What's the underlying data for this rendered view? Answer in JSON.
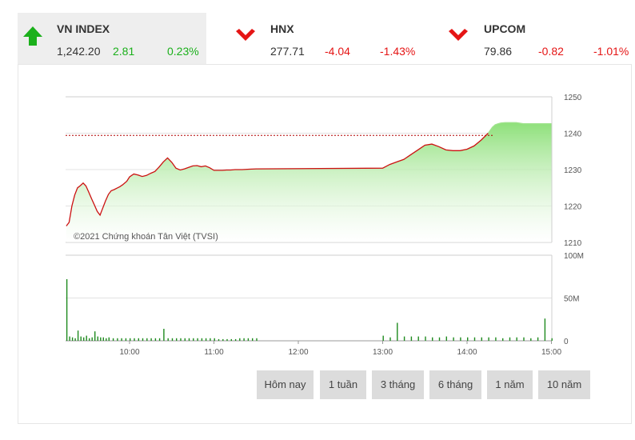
{
  "indices": [
    {
      "name": "VN INDEX",
      "value": "1,242.20",
      "change": "2.81",
      "percent": "0.23%",
      "direction": "up",
      "arrow_icon": "arrow-up-icon"
    },
    {
      "name": "HNX",
      "value": "277.71",
      "change": "-4.04",
      "percent": "-1.43%",
      "direction": "down",
      "arrow_icon": "arrow-down-icon"
    },
    {
      "name": "UPCOM",
      "value": "79.86",
      "change": "-0.82",
      "percent": "-1.01%",
      "direction": "down",
      "arrow_icon": "arrow-down-icon"
    }
  ],
  "colors": {
    "up": "#1bb01b",
    "down": "#e51515",
    "line": "#cc1111",
    "volume": "#1e8a1e",
    "area_top": "#8ee07a"
  },
  "watermark": "©2021 Chứng khoán Tân Việt (TVSI)",
  "range_buttons": [
    "Hôm nay",
    "1 tuần",
    "3 tháng",
    "6 tháng",
    "1 năm",
    "10 năm"
  ],
  "chart_data": [
    {
      "type": "area",
      "x_unit": "time (HH:MM)",
      "xlim": [
        "09:15",
        "15:00"
      ],
      "ylim": [
        1210,
        1250
      ],
      "y_ticks": [
        "1210",
        "1220",
        "1230",
        "1240",
        "1250"
      ],
      "reference_value": 1239.39,
      "series": [
        {
          "x": [
            "09:15",
            "09:17",
            "09:19",
            "09:21",
            "09:23",
            "09:25",
            "09:27",
            "09:29",
            "09:31",
            "09:33",
            "09:35",
            "09:37",
            "09:39",
            "09:41",
            "09:43",
            "09:45",
            "09:47",
            "09:49",
            "09:51",
            "09:53",
            "09:55",
            "09:58",
            "10:00",
            "10:03",
            "10:06",
            "10:09",
            "10:12",
            "10:15",
            "10:18",
            "10:21",
            "10:24",
            "10:27",
            "10:30",
            "10:33",
            "10:36",
            "10:39",
            "10:42",
            "10:45",
            "10:48",
            "10:51",
            "10:54",
            "10:57",
            "11:00",
            "11:03",
            "11:06",
            "11:09",
            "11:12",
            "11:15",
            "11:20",
            "11:25",
            "11:30",
            "13:00",
            "13:05",
            "13:10",
            "13:15",
            "13:20",
            "13:25",
            "13:30",
            "13:35",
            "13:40",
            "13:45",
            "13:50",
            "13:55",
            "14:00",
            "14:05",
            "14:10",
            "14:15",
            "14:18",
            "14:20",
            "14:22",
            "14:24",
            "14:27",
            "14:30",
            "14:35",
            "14:40",
            "14:45",
            "14:50",
            "14:55",
            "15:00"
          ],
          "values": [
            1214.5,
            1215.5,
            1220,
            1223,
            1225,
            1225.6,
            1226.3,
            1225.5,
            1223.8,
            1222,
            1220.3,
            1218.5,
            1217.5,
            1219.5,
            1221.5,
            1223.2,
            1224.2,
            1224.5,
            1224.9,
            1225.3,
            1225.8,
            1226.8,
            1228,
            1228.8,
            1228.5,
            1228.1,
            1228.4,
            1229,
            1229.5,
            1230.7,
            1232.1,
            1233.2,
            1232,
            1230.4,
            1229.9,
            1230.2,
            1230.6,
            1231,
            1231.1,
            1230.8,
            1231,
            1230.5,
            1229.8,
            1229.8,
            1229.8,
            1229.9,
            1229.9,
            1230,
            1230,
            1230.1,
            1230.2,
            1230.4,
            1231.4,
            1232.1,
            1232.8,
            1234.1,
            1235.4,
            1236.7,
            1237,
            1236.3,
            1235.4,
            1235.2,
            1235.2,
            1235.6,
            1236.5,
            1238.1,
            1240,
            1241.6,
            1242.3,
            1242.6,
            1242.8,
            1242.9,
            1242.9,
            1242.9,
            1242.6,
            1242.6,
            1242.6,
            1242.6,
            1242.6
          ]
        }
      ]
    },
    {
      "type": "bar",
      "x_unit": "time (HH:MM)",
      "x_ticks": [
        "10:00",
        "11:00",
        "12:00",
        "13:00",
        "14:00",
        "15:00"
      ],
      "ylim": [
        0,
        100
      ],
      "y_ticks": [
        "100M",
        "50M",
        "0"
      ],
      "series": [
        {
          "x": [
            "09:15",
            "09:17",
            "09:19",
            "09:21",
            "09:23",
            "09:25",
            "09:27",
            "09:29",
            "09:31",
            "09:33",
            "09:35",
            "09:37",
            "09:39",
            "09:41",
            "09:43",
            "09:45",
            "09:48",
            "09:51",
            "09:54",
            "09:57",
            "10:00",
            "10:03",
            "10:06",
            "10:09",
            "10:12",
            "10:15",
            "10:18",
            "10:21",
            "10:24",
            "10:27",
            "10:30",
            "10:33",
            "10:36",
            "10:39",
            "10:42",
            "10:45",
            "10:48",
            "10:51",
            "10:54",
            "10:57",
            "11:00",
            "11:03",
            "11:06",
            "11:09",
            "11:12",
            "11:15",
            "11:18",
            "11:21",
            "11:24",
            "11:27",
            "11:30",
            "13:00",
            "13:05",
            "13:10",
            "13:15",
            "13:20",
            "13:25",
            "13:30",
            "13:35",
            "13:40",
            "13:45",
            "13:50",
            "13:55",
            "14:00",
            "14:05",
            "14:10",
            "14:15",
            "14:20",
            "14:25",
            "14:30",
            "14:35",
            "14:40",
            "14:45",
            "14:50",
            "14:55",
            "15:00"
          ],
          "values": [
            72,
            5,
            4,
            3,
            12,
            5,
            4,
            6,
            3,
            4,
            11,
            5,
            4,
            4,
            3,
            4,
            3,
            3,
            3,
            3,
            3,
            3,
            3,
            3,
            3,
            3,
            3,
            3,
            14,
            3,
            3,
            3,
            3,
            3,
            3,
            3,
            3,
            3,
            3,
            3,
            3,
            2,
            2,
            2,
            2,
            2,
            3,
            3,
            3,
            3,
            3,
            6,
            4,
            21,
            5,
            5,
            5,
            5,
            4,
            4,
            5,
            4,
            4,
            4,
            4,
            4,
            4,
            4,
            3,
            4,
            4,
            4,
            3,
            4,
            26,
            3
          ]
        }
      ]
    }
  ]
}
